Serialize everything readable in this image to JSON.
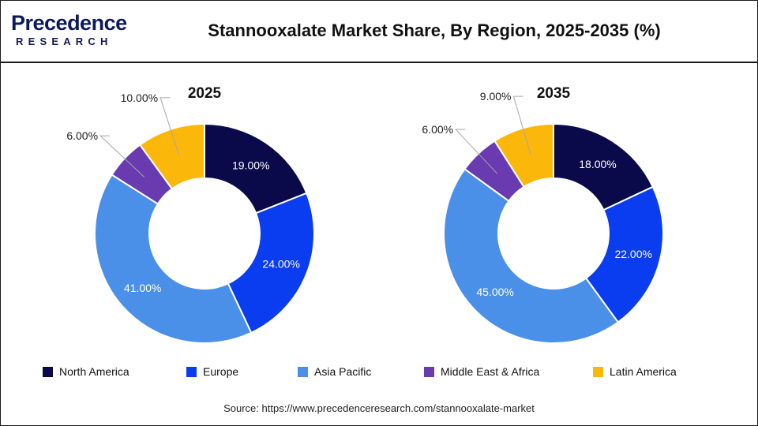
{
  "brand": {
    "name": "Precedence",
    "tagline": "RESEARCH"
  },
  "title": "Stannooxalate Market Share, By Region, 2025-2035 (%)",
  "source": "Source: https://www.precedenceresearch.com/stannooxalate-market",
  "colors": {
    "North America": "#0a0a4a",
    "Europe": "#0a3cf0",
    "Asia Pacific": "#4a90e8",
    "Middle East & Africa": "#6a3ab0",
    "Latin America": "#fbb80a"
  },
  "chart_data": [
    {
      "type": "pie",
      "style": "donut",
      "title": "2025",
      "categories": [
        "North America",
        "Europe",
        "Asia Pacific",
        "Middle East & Africa",
        "Latin America"
      ],
      "values": [
        19.0,
        24.0,
        41.0,
        6.0,
        10.0
      ],
      "labels": [
        "19.00%",
        "24.00%",
        "41.00%",
        "6.00%",
        "10.00%"
      ]
    },
    {
      "type": "pie",
      "style": "donut",
      "title": "2035",
      "categories": [
        "North America",
        "Europe",
        "Asia Pacific",
        "Middle East & Africa",
        "Latin America"
      ],
      "values": [
        18.0,
        22.0,
        45.0,
        6.0,
        9.0
      ],
      "labels": [
        "18.00%",
        "22.00%",
        "45.00%",
        "6.00%",
        "9.00%"
      ]
    }
  ],
  "legend": [
    "North America",
    "Europe",
    "Asia Pacific",
    "Middle East & Africa",
    "Latin America"
  ]
}
